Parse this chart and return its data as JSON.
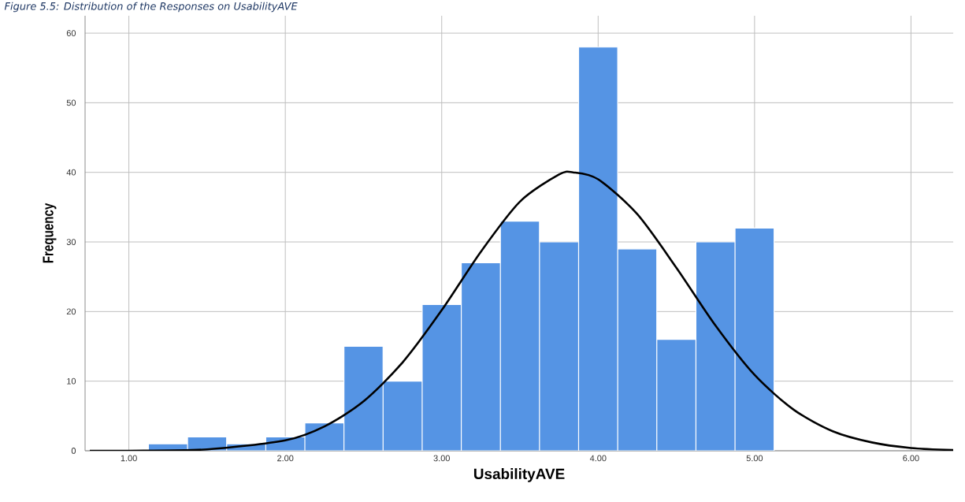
{
  "chart_data": {
    "type": "histogram",
    "title": "Figure 5.5: Distribution of the Responses on UsabilityAVE",
    "xlabel": "UsabilityAVE",
    "ylabel": "Frequency",
    "bins": [
      1.125,
      1.375,
      1.625,
      1.875,
      2.125,
      2.375,
      2.625,
      2.875,
      3.125,
      3.375,
      3.625,
      3.875,
      4.125,
      4.375,
      4.625,
      4.875,
      5.125
    ],
    "values": [
      1,
      2,
      1,
      2,
      4,
      15,
      10,
      21,
      27,
      33,
      30,
      58,
      29,
      16,
      30,
      32
    ],
    "color": "#5594e4",
    "series": [
      {
        "type": "line",
        "color": "#000000",
        "x": [
          0.75,
          1.0,
          1.5,
          2.0,
          2.25,
          2.5,
          2.75,
          3.0,
          3.25,
          3.5,
          3.75,
          3.84,
          4.0,
          4.25,
          4.5,
          4.75,
          5.0,
          5.25,
          5.5,
          5.75,
          6.0,
          6.27
        ],
        "values": [
          0.0,
          0.0,
          0.2,
          1.5,
          3.5,
          7.1,
          12.7,
          20.2,
          28.6,
          35.8,
          39.7,
          40,
          39.0,
          34.0,
          26.3,
          18.0,
          10.9,
          5.9,
          2.8,
          1.2,
          0.4,
          0.1
        ]
      }
    ],
    "xlim": [
      0.72,
      6.27
    ],
    "ylim": [
      0,
      62.5
    ],
    "xticks": [
      {
        "value": 1,
        "label": "1.00"
      },
      {
        "value": 2,
        "label": "2.00"
      },
      {
        "value": 3,
        "label": "3.00"
      },
      {
        "value": 4,
        "label": "4.00"
      },
      {
        "value": 5,
        "label": "5.00"
      },
      {
        "value": 6,
        "label": "6.00"
      }
    ],
    "yticks": [
      0,
      10,
      20,
      30,
      40,
      50,
      60
    ],
    "grid": true,
    "marker": "none",
    "line_style": "solid"
  }
}
